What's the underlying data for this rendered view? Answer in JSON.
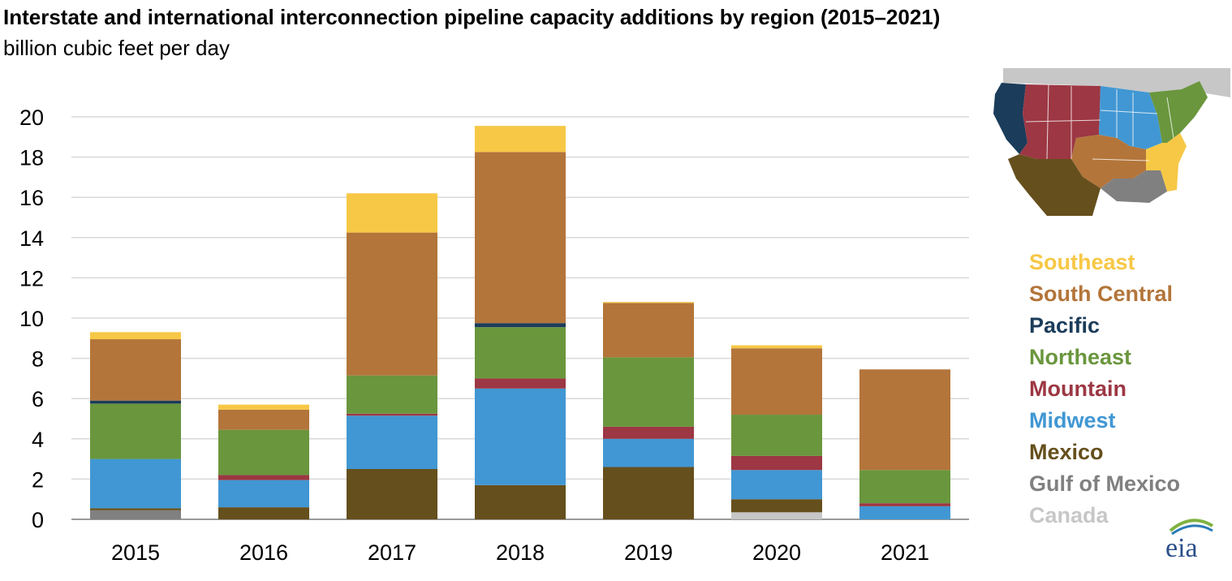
{
  "chart_data": {
    "type": "bar",
    "stacked": true,
    "title": "Interstate and international interconnection pipeline capacity additions by region (2015–2021)",
    "subtitle": "billion cubic feet per day",
    "categories": [
      "2015",
      "2016",
      "2017",
      "2018",
      "2019",
      "2020",
      "2021"
    ],
    "ylim": [
      0,
      20
    ],
    "yticks": [
      0,
      2,
      4,
      6,
      8,
      10,
      12,
      14,
      16,
      18,
      20
    ],
    "grid": true,
    "legend_position": "right",
    "series": [
      {
        "name": "Canada",
        "color": "#c7c7c7",
        "values": [
          0,
          0,
          0,
          0,
          0,
          0.35,
          0
        ]
      },
      {
        "name": "Gulf of Mexico",
        "color": "#808080",
        "values": [
          0.45,
          0,
          0,
          0,
          0,
          0,
          0
        ]
      },
      {
        "name": "Mexico",
        "color": "#654f1c",
        "values": [
          0.1,
          0.6,
          2.5,
          1.7,
          2.6,
          0.65,
          0
        ]
      },
      {
        "name": "Midwest",
        "color": "#4197d3",
        "values": [
          2.45,
          1.35,
          2.65,
          4.8,
          1.4,
          1.45,
          0.65
        ]
      },
      {
        "name": "Mountain",
        "color": "#9c3743",
        "values": [
          0,
          0.25,
          0.1,
          0.5,
          0.6,
          0.7,
          0.15
        ]
      },
      {
        "name": "Northeast",
        "color": "#6a963d",
        "values": [
          2.75,
          2.25,
          1.9,
          2.55,
          3.45,
          2.05,
          1.65
        ]
      },
      {
        "name": "Pacific",
        "color": "#1b3c5a",
        "values": [
          0.15,
          0,
          0,
          0.2,
          0,
          0,
          0
        ]
      },
      {
        "name": "South Central",
        "color": "#b3753a",
        "values": [
          3.05,
          1.0,
          7.1,
          8.5,
          2.7,
          3.3,
          5.0
        ]
      },
      {
        "name": "Southeast",
        "color": "#f7c846",
        "values": [
          0.35,
          0.25,
          1.95,
          1.3,
          0.05,
          0.15,
          0
        ]
      }
    ]
  },
  "legend": [
    {
      "label": "Southeast",
      "color": "#f7c846"
    },
    {
      "label": "South Central",
      "color": "#b3753a"
    },
    {
      "label": "Pacific",
      "color": "#1b3c5a"
    },
    {
      "label": "Northeast",
      "color": "#6a963d"
    },
    {
      "label": "Mountain",
      "color": "#9c3743"
    },
    {
      "label": "Midwest",
      "color": "#4197d3"
    },
    {
      "label": "Mexico",
      "color": "#654f1c"
    },
    {
      "label": "Gulf of Mexico",
      "color": "#808080"
    },
    {
      "label": "Canada",
      "color": "#c7c7c7"
    }
  ],
  "logo": {
    "text": "eia",
    "icon": "eia-logo-icon"
  },
  "map": {
    "icon": "us-regions-map-icon"
  }
}
